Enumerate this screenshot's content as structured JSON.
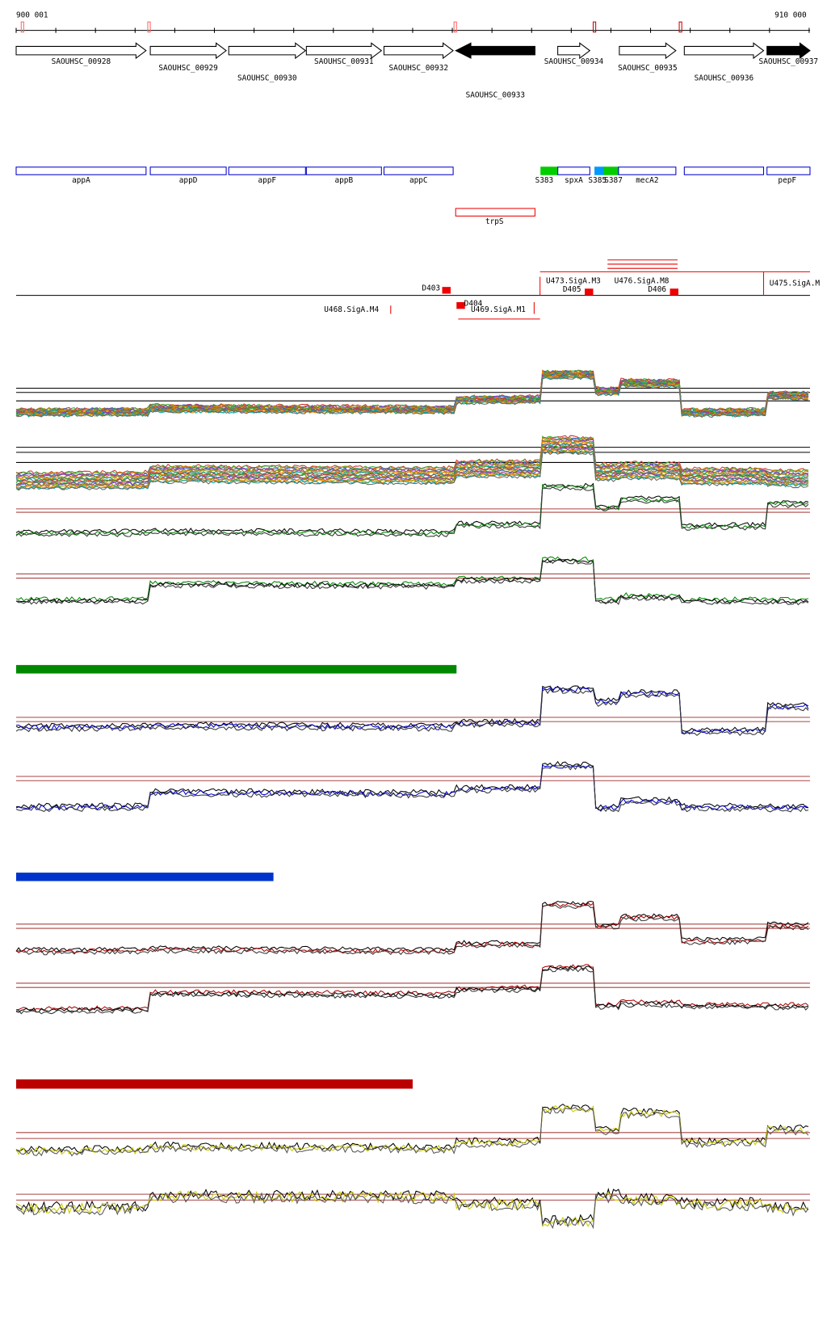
{
  "ruler": {
    "start": "900 001",
    "end": "910 000"
  },
  "genes": [
    "SAOUHSC_00928",
    "SAOUHSC_00929",
    "SAOUHSC_00930",
    "SAOUHSC_00931",
    "SAOUHSC_00932",
    "SAOUHSC_00933",
    "SAOUHSC_00934",
    "SAOUHSC_00935",
    "SAOUHSC_00936",
    "SAOUHSC_00937"
  ],
  "annotations": [
    "appA",
    "appD",
    "appF",
    "appB",
    "appC",
    "S383",
    "spxA",
    "S385",
    "S387",
    "mecA2",
    "pepF",
    "trpS"
  ],
  "sites": [
    "D403",
    "D404",
    "D405",
    "D406",
    "U468.SigA.M4",
    "U469.SigA.M1",
    "U473.SigA.M3",
    "U476.SigA.M8",
    "U475.SigA.M"
  ]
}
